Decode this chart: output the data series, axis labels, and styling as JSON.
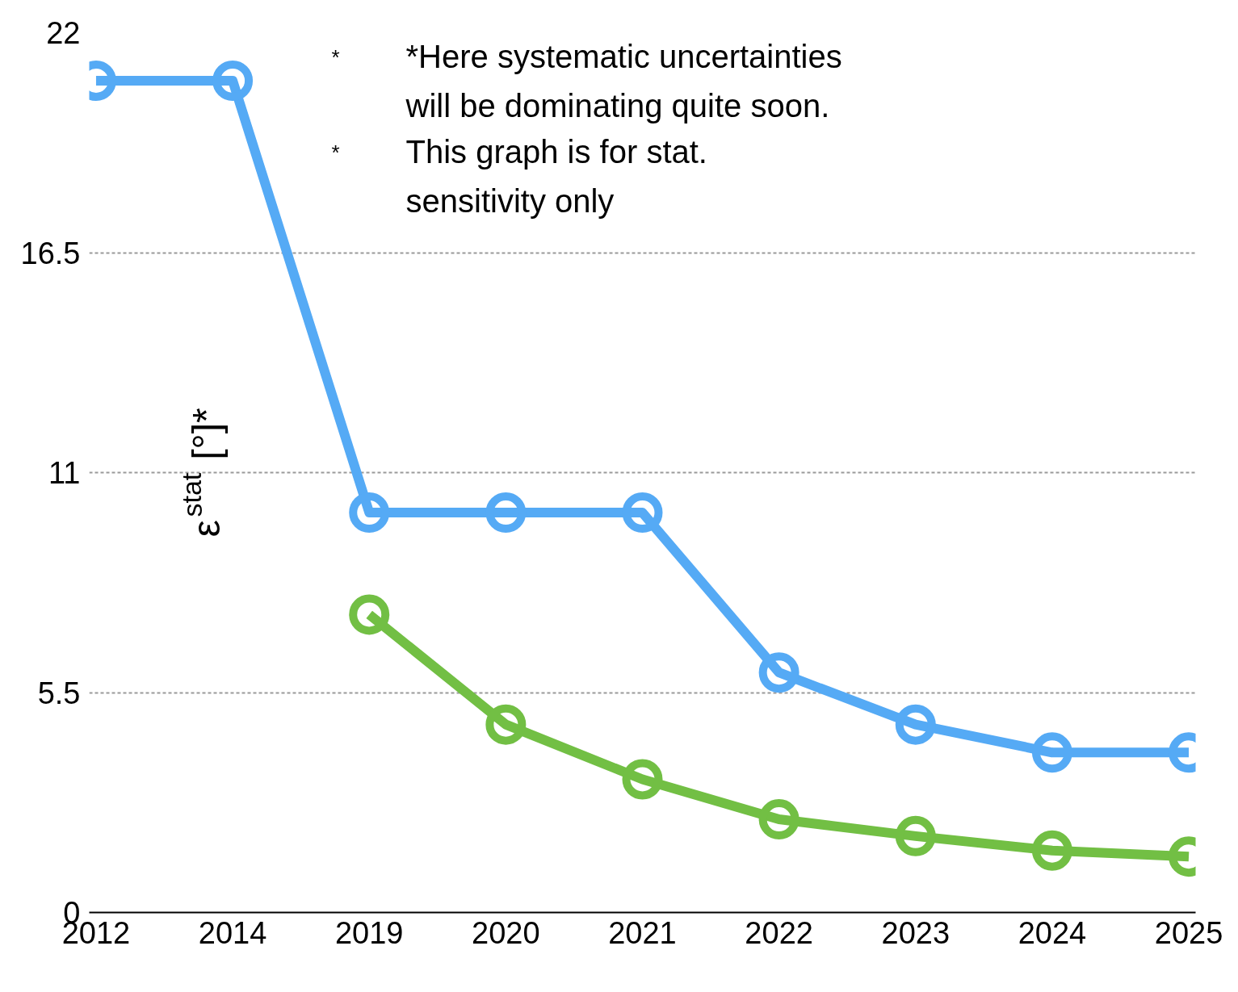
{
  "chart_data": {
    "type": "line",
    "categories": [
      "2012",
      "2014",
      "2019",
      "2020",
      "2021",
      "2022",
      "2023",
      "2024",
      "2025"
    ],
    "series": [
      {
        "color": "#55aaf5",
        "values": [
          20.8,
          20.8,
          10,
          10,
          10,
          6,
          4.7,
          4,
          4
        ]
      },
      {
        "color": "#72bf44",
        "values": [
          null,
          null,
          7.45,
          4.7,
          3.33,
          2.33,
          1.91,
          1.55,
          1.4
        ]
      }
    ],
    "ylabel": "ε$^{stat}$[°]*",
    "ylim": [
      0,
      22
    ],
    "yticks": [
      0,
      5.5,
      11,
      16.5,
      22
    ],
    "grid": "y",
    "marker": "circle",
    "line_style": "solid",
    "annotations": [
      "* *Here systematic uncertainties will be dominating quite soon.",
      "* This graph is for stat. sensitivity only"
    ]
  }
}
